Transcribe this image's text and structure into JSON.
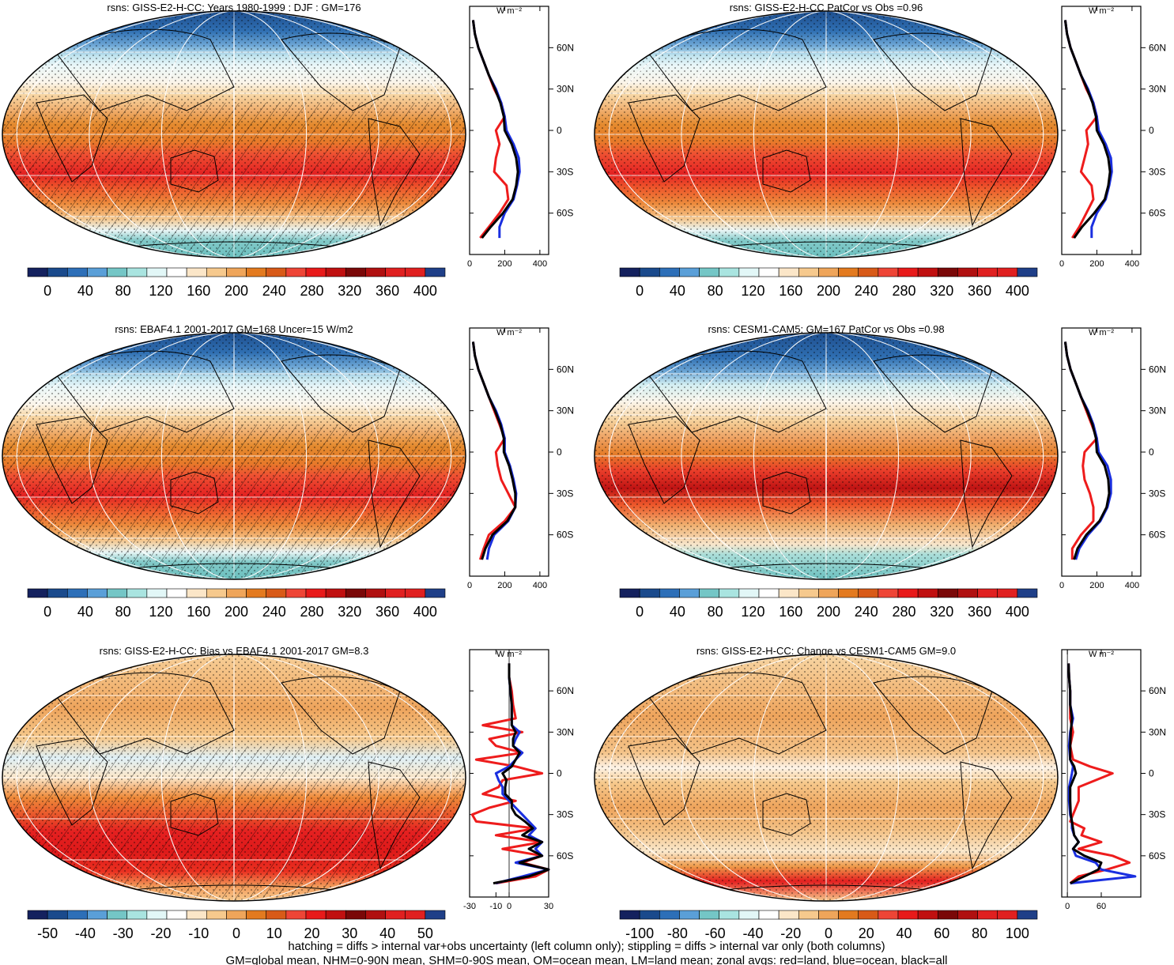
{
  "figure": {
    "footer_line1": "hatching = diffs > internal var+obs uncertainty (left column only); stippling = diffs > internal var only (both columns)",
    "footer_line2": "GM=global mean, NHM=0-90N mean, SHM=0-90S mean, OM=ocean mean, LM=land mean; zonal avgs: red=land, blue=ocean, black=all",
    "zonal_unit": "W m⁻²",
    "lat_ticks": [
      "60N",
      "30N",
      "0",
      "30S",
      "60S"
    ]
  },
  "colorbars": {
    "absolute": {
      "ticks": [
        "0",
        "40",
        "80",
        "120",
        "160",
        "200",
        "240",
        "280",
        "320",
        "360",
        "400"
      ],
      "colors": [
        "#14215e",
        "#1a4a8c",
        "#2d6fb8",
        "#5a9fd8",
        "#74c6c6",
        "#a9e4e0",
        "#e2f7f7",
        "#ffffff",
        "#fbe6c8",
        "#f6c98d",
        "#efa55a",
        "#e37a1f",
        "#d85a18",
        "#ee4536",
        "#e81a1a",
        "#c01010",
        "#7a0808",
        "#b01010",
        "#e02020",
        "#e02020",
        "#1f3f88"
      ]
    },
    "bias": {
      "ticks": [
        "-50",
        "-40",
        "-30",
        "-20",
        "-10",
        "0",
        "10",
        "20",
        "30",
        "40",
        "50"
      ],
      "colors": [
        "#14215e",
        "#1a4a8c",
        "#2d6fb8",
        "#5a9fd8",
        "#74c6c6",
        "#a9e4e0",
        "#e2f7f7",
        "#ffffff",
        "#fbe6c8",
        "#f6c98d",
        "#efa55a",
        "#e37a1f",
        "#d85a18",
        "#ee4536",
        "#e81a1a",
        "#c01010",
        "#7a0808",
        "#b01010",
        "#e02020",
        "#e02020",
        "#1f3f88"
      ]
    },
    "change": {
      "ticks": [
        "-100",
        "-80",
        "-60",
        "-40",
        "-20",
        "0",
        "20",
        "40",
        "60",
        "80",
        "100"
      ],
      "colors": [
        "#14215e",
        "#1a4a8c",
        "#2d6fb8",
        "#5a9fd8",
        "#74c6c6",
        "#a9e4e0",
        "#e2f7f7",
        "#ffffff",
        "#fbe6c8",
        "#f6c98d",
        "#efa55a",
        "#e37a1f",
        "#d85a18",
        "#ee4536",
        "#e81a1a",
        "#c01010",
        "#7a0808",
        "#b01010",
        "#e02020",
        "#e02020",
        "#1f3f88"
      ]
    }
  },
  "chart_data": [
    {
      "type": "heatmap",
      "title": "rsns: GISS-E2-H-CC: Years 1980-1999 : DJF : GM=176",
      "colorbar": "absolute",
      "zonal_x_ticks": [
        "0",
        "200",
        "400"
      ],
      "zonal_xlim": [
        0,
        450
      ],
      "lat": [
        -78,
        -70,
        -60,
        -50,
        -40,
        -30,
        -20,
        -10,
        0,
        10,
        20,
        30,
        40,
        50,
        60,
        70,
        80
      ],
      "zonal_land": [
        60,
        110,
        170,
        220,
        210,
        140,
        150,
        170,
        150,
        200,
        180,
        140,
        110,
        80,
        50,
        30,
        20
      ],
      "zonal_ocean": [
        170,
        170,
        200,
        250,
        270,
        285,
        280,
        250,
        210,
        200,
        180,
        150,
        110,
        80,
        50,
        30,
        20
      ],
      "zonal_all": [
        70,
        120,
        190,
        245,
        265,
        275,
        265,
        240,
        200,
        195,
        175,
        145,
        110,
        80,
        50,
        30,
        20
      ]
    },
    {
      "type": "heatmap",
      "title": "rsns: GISS-E2-H-CC PatCor vs Obs =0.96",
      "colorbar": "absolute",
      "zonal_x_ticks": [
        "0",
        "200",
        "400"
      ],
      "zonal_xlim": [
        0,
        450
      ],
      "lat": [
        -78,
        -70,
        -60,
        -50,
        -40,
        -30,
        -20,
        -10,
        0,
        10,
        20,
        30,
        40,
        50,
        60,
        70,
        80
      ],
      "zonal_land": [
        60,
        100,
        140,
        180,
        170,
        110,
        130,
        150,
        140,
        200,
        180,
        140,
        110,
        80,
        50,
        30,
        20
      ],
      "zonal_ocean": [
        170,
        170,
        200,
        250,
        270,
        285,
        280,
        250,
        210,
        200,
        180,
        150,
        110,
        80,
        50,
        30,
        20
      ],
      "zonal_all": [
        70,
        115,
        185,
        245,
        265,
        275,
        265,
        240,
        200,
        195,
        175,
        145,
        110,
        80,
        50,
        30,
        20
      ]
    },
    {
      "type": "heatmap",
      "title": "rsns: EBAF4.1 2001-2017 GM=168 Uncer=15 W/m2",
      "colorbar": "absolute",
      "zonal_x_ticks": [
        "0",
        "200",
        "400"
      ],
      "zonal_xlim": [
        0,
        450
      ],
      "lat": [
        -78,
        -70,
        -60,
        -50,
        -40,
        -30,
        -20,
        -10,
        0,
        10,
        20,
        30,
        40,
        50,
        60,
        70,
        80
      ],
      "zonal_land": [
        60,
        80,
        110,
        200,
        260,
        220,
        180,
        160,
        150,
        200,
        170,
        140,
        110,
        80,
        50,
        30,
        20
      ],
      "zonal_ocean": [
        100,
        110,
        140,
        220,
        260,
        265,
        250,
        230,
        200,
        200,
        180,
        150,
        110,
        80,
        50,
        30,
        20
      ],
      "zonal_all": [
        70,
        90,
        130,
        215,
        260,
        260,
        245,
        225,
        195,
        195,
        175,
        145,
        110,
        80,
        50,
        30,
        20
      ]
    },
    {
      "type": "heatmap",
      "title": "rsns: CESM1-CAM5: GM=167 PatCor vs Obs =0.98",
      "colorbar": "absolute",
      "zonal_x_ticks": [
        "0",
        "200",
        "400"
      ],
      "zonal_xlim": [
        0,
        450
      ],
      "lat": [
        -78,
        -70,
        -60,
        -50,
        -40,
        -30,
        -20,
        -10,
        0,
        10,
        20,
        30,
        40,
        50,
        60,
        70,
        80
      ],
      "zonal_land": [
        60,
        60,
        110,
        180,
        180,
        160,
        130,
        120,
        130,
        200,
        170,
        140,
        110,
        80,
        50,
        30,
        20
      ],
      "zonal_ocean": [
        80,
        100,
        150,
        220,
        260,
        280,
        280,
        260,
        210,
        200,
        180,
        150,
        110,
        80,
        50,
        30,
        20
      ],
      "zonal_all": [
        70,
        90,
        140,
        215,
        255,
        270,
        265,
        245,
        200,
        195,
        175,
        145,
        110,
        80,
        50,
        30,
        20
      ]
    },
    {
      "type": "heatmap",
      "title": "rsns: GISS-E2-H-CC: Bias vs EBAF4.1 2001-2017 GM=8.3",
      "colorbar": "bias",
      "zonal_x_ticks": [
        "-30",
        "-10",
        "0",
        "30"
      ],
      "zonal_xlim": [
        -30,
        30
      ],
      "lat": [
        -80,
        -75,
        -70,
        -65,
        -60,
        -55,
        -50,
        -45,
        -40,
        -35,
        -30,
        -25,
        -20,
        -15,
        -10,
        -5,
        0,
        5,
        10,
        15,
        20,
        25,
        30,
        35,
        40,
        50,
        60,
        70,
        80
      ],
      "zonal_land": [
        -10,
        20,
        30,
        10,
        25,
        -5,
        25,
        -10,
        20,
        -25,
        -28,
        -15,
        5,
        -20,
        -8,
        -5,
        25,
        5,
        -25,
        10,
        -10,
        -15,
        10,
        -20,
        5,
        3,
        2,
        0,
        0
      ],
      "zonal_ocean": [
        -10,
        10,
        30,
        5,
        25,
        20,
        25,
        15,
        20,
        15,
        10,
        5,
        0,
        -5,
        -5,
        -8,
        -10,
        0,
        5,
        10,
        3,
        5,
        8,
        2,
        2,
        2,
        1,
        0,
        0
      ],
      "zonal_all": [
        -12,
        15,
        30,
        8,
        25,
        15,
        25,
        10,
        18,
        12,
        5,
        2,
        2,
        -3,
        -3,
        -2,
        -5,
        2,
        5,
        8,
        3,
        3,
        5,
        2,
        2,
        2,
        1,
        0,
        0
      ]
    },
    {
      "type": "heatmap",
      "title": "rsns: GISS-E2-H-CC: Change vs CESM1-CAM5 GM=9.0",
      "colorbar": "change",
      "zonal_x_ticks": [
        "0",
        "60"
      ],
      "zonal_xlim": [
        -10,
        130
      ],
      "lat": [
        -80,
        -75,
        -70,
        -65,
        -60,
        -55,
        -50,
        -45,
        -40,
        -35,
        -30,
        -20,
        -10,
        0,
        5,
        10,
        20,
        30,
        40,
        50,
        60,
        70,
        80
      ],
      "zonal_land": [
        5,
        20,
        70,
        110,
        80,
        20,
        60,
        25,
        30,
        5,
        10,
        20,
        20,
        80,
        40,
        10,
        5,
        10,
        5,
        5,
        5,
        3,
        2
      ],
      "zonal_ocean": [
        5,
        120,
        60,
        50,
        15,
        10,
        20,
        12,
        8,
        8,
        5,
        3,
        3,
        8,
        10,
        5,
        3,
        5,
        10,
        5,
        5,
        3,
        2
      ],
      "zonal_all": [
        5,
        30,
        55,
        60,
        30,
        10,
        20,
        12,
        10,
        8,
        6,
        5,
        5,
        15,
        12,
        5,
        5,
        6,
        8,
        5,
        5,
        3,
        2
      ]
    }
  ]
}
